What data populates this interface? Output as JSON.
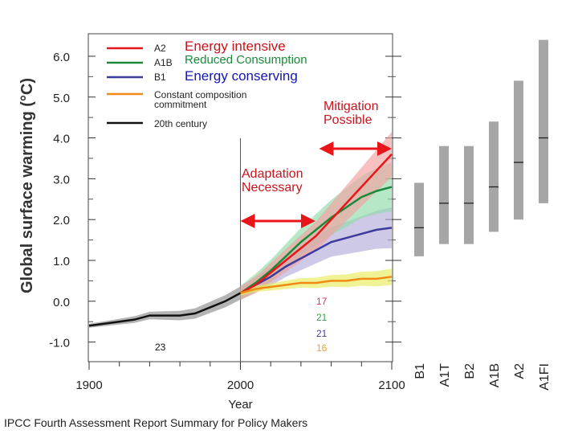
{
  "chart_data": {
    "type": "line",
    "xlabel": "Year",
    "ylabel": "Global surface warming (°C)",
    "xlim": [
      1900,
      2100
    ],
    "ylim": [
      -1.48,
      6.55
    ],
    "x_ticks": [
      "1900",
      "2000",
      "2100"
    ],
    "y_ticks": [
      "-1.0",
      "0.0",
      "1.0",
      "2.0",
      "3.0",
      "4.0",
      "5.0",
      "6.0"
    ],
    "grid": false,
    "legend_position": "top-left",
    "series": [
      {
        "name": "20th century",
        "color": "#111111",
        "band_color": "#8c8c8c",
        "x": [
          1900,
          1910,
          1920,
          1930,
          1940,
          1950,
          1960,
          1970,
          1980,
          1990,
          2000
        ],
        "values": [
          -0.6,
          -0.55,
          -0.5,
          -0.45,
          -0.35,
          -0.35,
          -0.35,
          -0.3,
          -0.15,
          0.0,
          0.2
        ],
        "band": 0.16,
        "model_count": "23"
      },
      {
        "name": "B1",
        "color": "#3b3b9e",
        "band_color": "#b3acd9",
        "x": [
          2000,
          2010,
          2020,
          2030,
          2040,
          2050,
          2060,
          2070,
          2080,
          2090,
          2100
        ],
        "values": [
          0.2,
          0.4,
          0.6,
          0.85,
          1.05,
          1.25,
          1.45,
          1.55,
          1.65,
          1.75,
          1.8
        ],
        "band": 0.5,
        "model_count": "21"
      },
      {
        "name": "A1B",
        "color": "#1a8a3a",
        "band_color": "#8fdcaa",
        "x": [
          2000,
          2010,
          2020,
          2030,
          2040,
          2050,
          2060,
          2070,
          2080,
          2090,
          2100
        ],
        "values": [
          0.2,
          0.45,
          0.75,
          1.1,
          1.45,
          1.75,
          2.05,
          2.3,
          2.55,
          2.7,
          2.8
        ],
        "band": 0.6,
        "model_count": "21"
      },
      {
        "name": "A2",
        "color": "#e8161b",
        "band_color": "#f2a0a0",
        "x": [
          2000,
          2010,
          2020,
          2030,
          2040,
          2050,
          2060,
          2070,
          2080,
          2090,
          2100
        ],
        "values": [
          0.2,
          0.4,
          0.7,
          1.0,
          1.3,
          1.6,
          2.0,
          2.4,
          2.8,
          3.2,
          3.6
        ],
        "band": 0.55,
        "model_count": "17"
      },
      {
        "name": "Constant composition commitment",
        "color": "#f08a12",
        "band_color": "#e8ec5a",
        "x": [
          2000,
          2010,
          2020,
          2030,
          2040,
          2050,
          2060,
          2070,
          2080,
          2090,
          2100
        ],
        "values": [
          0.2,
          0.3,
          0.35,
          0.4,
          0.45,
          0.45,
          0.5,
          0.5,
          0.55,
          0.55,
          0.6
        ],
        "band": 0.2,
        "model_count": "16"
      }
    ],
    "legend": [
      {
        "code": "A2",
        "label": "Energy intensive",
        "color": "#e8161b",
        "label_color": "#c8141c"
      },
      {
        "code": "A1B",
        "label": "Reduced Consumption",
        "color": "#1a8a3a",
        "label_color": "#1a8a3a"
      },
      {
        "code": "B1",
        "label": "Energy conserving",
        "color": "#3b3b9e",
        "label_color": "#1515b0"
      },
      {
        "code": "Constant composition commitment",
        "color": "#f08a12"
      },
      {
        "code": "20th century",
        "color": "#111111"
      }
    ],
    "scenario_ranges": {
      "categories": [
        "B1",
        "A1T",
        "B2",
        "A1B",
        "A2",
        "A1FI"
      ],
      "low": [
        1.1,
        1.4,
        1.4,
        1.7,
        2.0,
        2.4
      ],
      "best": [
        1.8,
        2.4,
        2.4,
        2.8,
        3.4,
        4.0
      ],
      "high": [
        2.9,
        3.8,
        3.8,
        4.4,
        5.4,
        6.4
      ],
      "color": "#a6a6a6"
    },
    "annotations": {
      "adaptation": "Adaptation Necessary",
      "adaptation_arrow_years": [
        2000,
        2048
      ],
      "mitigation": "Mitigation Possible",
      "mitigation_arrow_years": [
        2052,
        2100
      ],
      "arrow_color": "#e8161b"
    }
  },
  "caption": "IPCC Fourth Assessment Report Summary for Policy Makers"
}
